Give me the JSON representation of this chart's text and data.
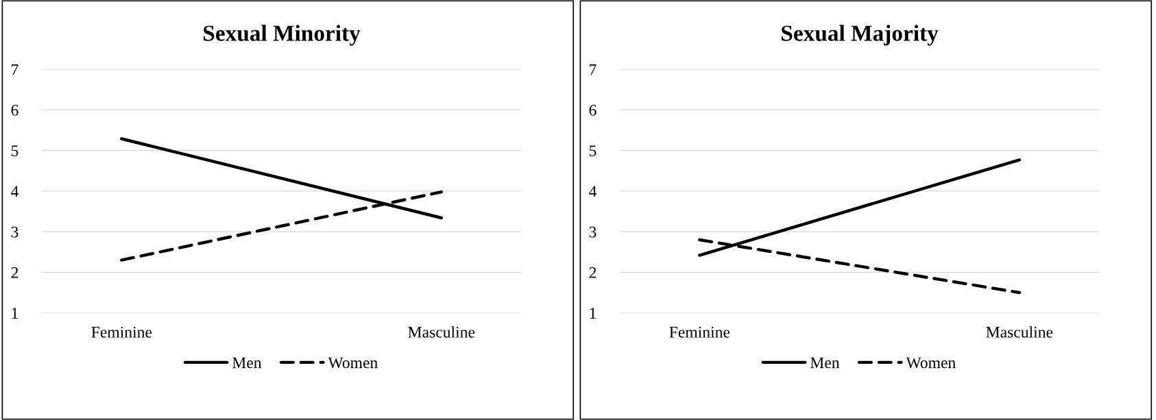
{
  "chart_data": [
    {
      "type": "line",
      "title": "Sexual Minority",
      "categories": [
        "Feminine",
        "Masculine"
      ],
      "ylim": [
        1,
        7
      ],
      "yticks": [
        1,
        2,
        3,
        4,
        5,
        6,
        7
      ],
      "grid": "y",
      "legend": "bottom",
      "marker": "none",
      "series": [
        {
          "name": "Men",
          "color": "#000000",
          "line_style": "solid",
          "values": [
            5.29,
            3.34
          ]
        },
        {
          "name": "Women",
          "color": "#000000",
          "line_style": "dashed",
          "values": [
            2.3,
            3.98
          ]
        }
      ]
    },
    {
      "type": "line",
      "title": "Sexual Majority",
      "categories": [
        "Feminine",
        "Masculine"
      ],
      "ylim": [
        1,
        7
      ],
      "yticks": [
        1,
        2,
        3,
        4,
        5,
        6,
        7
      ],
      "grid": "y",
      "legend": "bottom",
      "marker": "none",
      "series": [
        {
          "name": "Men",
          "color": "#000000",
          "line_style": "solid",
          "values": [
            2.42,
            4.77
          ]
        },
        {
          "name": "Women",
          "color": "#000000",
          "line_style": "dashed",
          "values": [
            2.8,
            1.5
          ]
        }
      ]
    }
  ]
}
